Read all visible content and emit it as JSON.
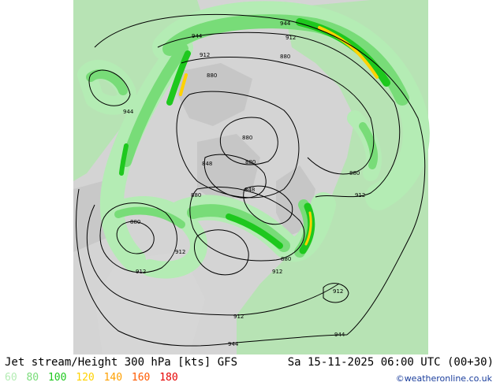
{
  "title": {
    "product": "Jet stream/Height 300 hPa [kts] GFS",
    "valid_time": "Sa 15-11-2025 06:00 UTC (00+30)"
  },
  "legend": {
    "items": [
      {
        "value": "60",
        "color": "#b4ecb4"
      },
      {
        "value": "80",
        "color": "#78dc78"
      },
      {
        "value": "100",
        "color": "#1ec81e"
      },
      {
        "value": "120",
        "color": "#ffd200"
      },
      {
        "value": "140",
        "color": "#ffa000"
      },
      {
        "value": "160",
        "color": "#ff5a00"
      },
      {
        "value": "180",
        "color": "#e60000"
      }
    ]
  },
  "credit": "©weatheronline.co.uk",
  "contour_labels": [
    "944",
    "944",
    "912",
    "912",
    "880",
    "880",
    "944",
    "880",
    "880",
    "848",
    "848",
    "880",
    "880",
    "880",
    "912",
    "912",
    "912",
    "880",
    "912",
    "912",
    "912",
    "944",
    "944"
  ],
  "colors": {
    "ocean": "#d2d2d2",
    "land_north": "#c8c8c8",
    "land_south": "#b4e0b4",
    "jet_60": "#b4ecb4",
    "jet_80": "#78dc78",
    "jet_100": "#1ec81e",
    "jet_120": "#ffd200",
    "contour": "#000000",
    "credit": "#1a3d9c"
  }
}
